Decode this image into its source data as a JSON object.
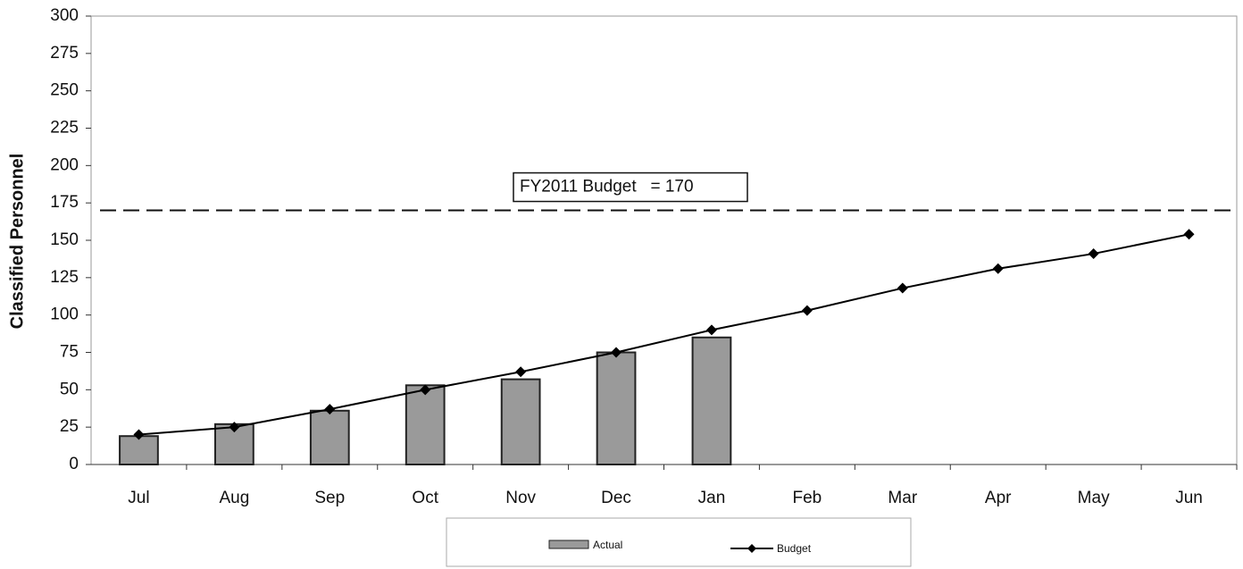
{
  "chart_data": {
    "type": "bar_line",
    "y_label": "Classified Personnel",
    "categories": [
      "Jul",
      "Aug",
      "Sep",
      "Oct",
      "Nov",
      "Dec",
      "Jan",
      "Feb",
      "Mar",
      "Apr",
      "May",
      "Jun"
    ],
    "series": [
      {
        "name": "Actual",
        "type": "bar",
        "color": "#9a9a9a",
        "values": [
          19,
          27,
          36,
          53,
          57,
          75,
          85,
          null,
          null,
          null,
          null,
          null
        ]
      },
      {
        "name": "Budget",
        "type": "line",
        "color": "#000000",
        "values": [
          20,
          25,
          37,
          50,
          62,
          75,
          90,
          103,
          118,
          131,
          141,
          154
        ]
      }
    ],
    "ylim": [
      0,
      300
    ],
    "yticks": [
      0,
      25,
      50,
      75,
      100,
      125,
      150,
      175,
      200,
      225,
      250,
      275,
      300
    ],
    "annotation": {
      "text": "FY2011 Budget   = 170",
      "value": 170
    },
    "legend": "bottom"
  }
}
